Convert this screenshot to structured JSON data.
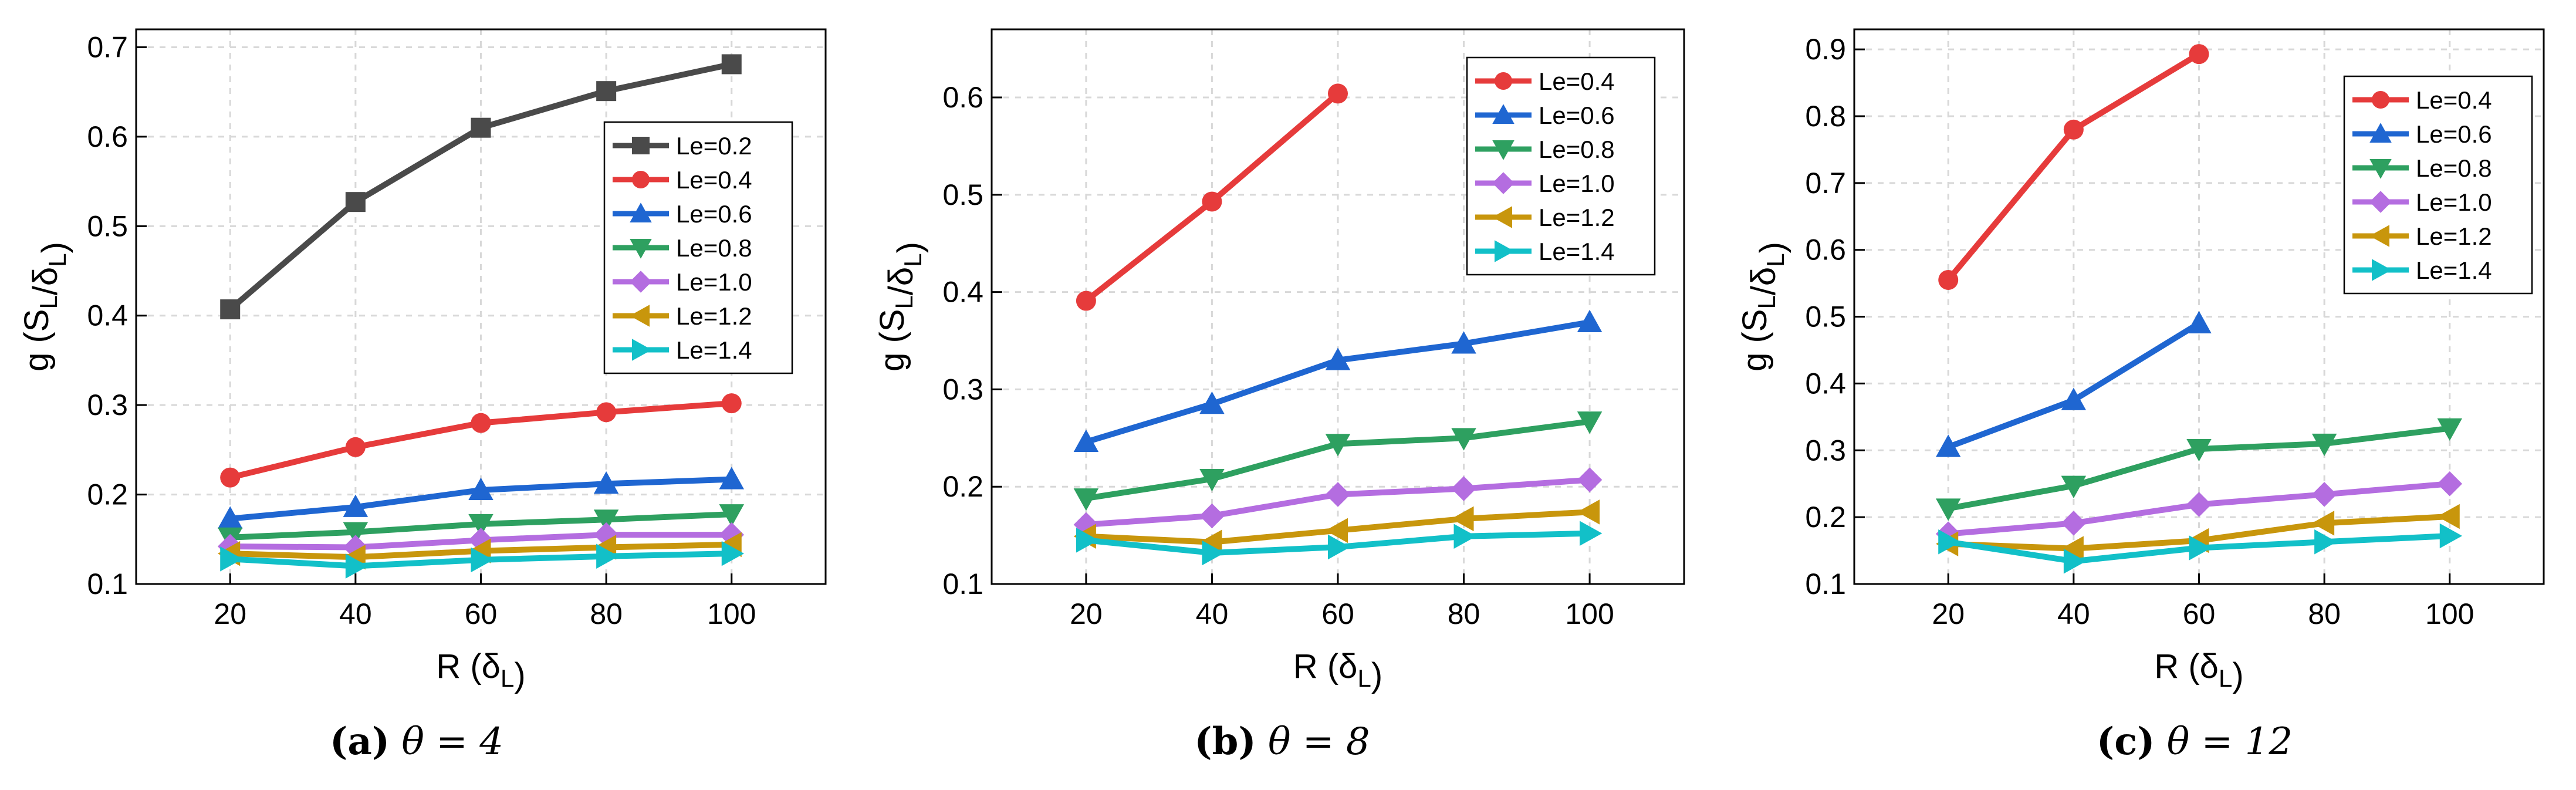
{
  "colors": {
    "Le=0.2": "#4a4a4a",
    "Le=0.4": "#e63b3b",
    "Le=0.6": "#1f66d1",
    "Le=0.8": "#2ea060",
    "Le=1.0": "#b46de0",
    "Le=1.2": "#c8960c",
    "Le=1.4": "#12c0c8"
  },
  "markers": {
    "Le=0.2": "square",
    "Le=0.4": "circle",
    "Le=0.6": "triangle-up",
    "Le=0.8": "triangle-down",
    "Le=1.0": "diamond",
    "Le=1.2": "triangle-left",
    "Le=1.4": "triangle-right"
  },
  "chart_data": [
    {
      "type": "line",
      "caption_label": "(a)",
      "caption_text": "θ = 4",
      "xlabel": "R (δL)",
      "ylabel": "g (SL/δL)",
      "xlim": [
        5,
        115
      ],
      "ylim": [
        0.1,
        0.72
      ],
      "xticks": [
        "20",
        "40",
        "60",
        "80",
        "100"
      ],
      "yticks": [
        "0.1",
        "0.2",
        "0.3",
        "0.4",
        "0.5",
        "0.6",
        "0.7"
      ],
      "ytick_values": [
        0.1,
        0.2,
        0.3,
        0.4,
        0.5,
        0.6,
        0.7
      ],
      "grid": true,
      "legend_position": "right-middle",
      "series": [
        {
          "name": "Le=0.2",
          "x": [
            20,
            40,
            60,
            80,
            100
          ],
          "values": [
            0.407,
            0.527,
            0.61,
            0.651,
            0.681
          ]
        },
        {
          "name": "Le=0.4",
          "x": [
            20,
            40,
            60,
            80,
            100
          ],
          "values": [
            0.219,
            0.253,
            0.28,
            0.292,
            0.302
          ]
        },
        {
          "name": "Le=0.6",
          "x": [
            20,
            40,
            60,
            80,
            100
          ],
          "values": [
            0.173,
            0.186,
            0.205,
            0.212,
            0.217
          ]
        },
        {
          "name": "Le=0.8",
          "x": [
            20,
            40,
            60,
            80,
            100
          ],
          "values": [
            0.152,
            0.158,
            0.167,
            0.172,
            0.178
          ]
        },
        {
          "name": "Le=1.0",
          "x": [
            20,
            40,
            60,
            80,
            100
          ],
          "values": [
            0.142,
            0.141,
            0.149,
            0.155,
            0.155
          ]
        },
        {
          "name": "Le=1.2",
          "x": [
            20,
            40,
            60,
            80,
            100
          ],
          "values": [
            0.134,
            0.13,
            0.137,
            0.141,
            0.144
          ]
        },
        {
          "name": "Le=1.4",
          "x": [
            20,
            40,
            60,
            80,
            100
          ],
          "values": [
            0.128,
            0.12,
            0.127,
            0.131,
            0.134
          ]
        }
      ]
    },
    {
      "type": "line",
      "caption_label": "(b)",
      "caption_text": "θ = 8",
      "xlabel": "R (δL)",
      "ylabel": "g (SL/δL)",
      "xlim": [
        5,
        115
      ],
      "ylim": [
        0.1,
        0.67
      ],
      "xticks": [
        "20",
        "40",
        "60",
        "80",
        "100"
      ],
      "yticks": [
        "0.1",
        "0.2",
        "0.3",
        "0.4",
        "0.5",
        "0.6"
      ],
      "ytick_values": [
        0.1,
        0.2,
        0.3,
        0.4,
        0.5,
        0.6
      ],
      "grid": true,
      "legend_position": "top-right",
      "series": [
        {
          "name": "Le=0.4",
          "x": [
            20,
            40,
            60
          ],
          "values": [
            0.391,
            0.493,
            0.604
          ]
        },
        {
          "name": "Le=0.6",
          "x": [
            20,
            40,
            60,
            80,
            100
          ],
          "values": [
            0.246,
            0.285,
            0.33,
            0.347,
            0.369
          ]
        },
        {
          "name": "Le=0.8",
          "x": [
            20,
            40,
            60,
            80,
            100
          ],
          "values": [
            0.188,
            0.208,
            0.244,
            0.25,
            0.267
          ]
        },
        {
          "name": "Le=1.0",
          "x": [
            20,
            40,
            60,
            80,
            100
          ],
          "values": [
            0.161,
            0.17,
            0.192,
            0.198,
            0.207
          ]
        },
        {
          "name": "Le=1.2",
          "x": [
            20,
            40,
            60,
            80,
            100
          ],
          "values": [
            0.149,
            0.143,
            0.155,
            0.167,
            0.174
          ]
        },
        {
          "name": "Le=1.4",
          "x": [
            20,
            40,
            60,
            80,
            100
          ],
          "values": [
            0.145,
            0.132,
            0.138,
            0.149,
            0.152
          ]
        }
      ]
    },
    {
      "type": "line",
      "caption_label": "(c)",
      "caption_text": "θ = 12",
      "xlabel": "R (δL)",
      "ylabel": "g (SL/δL)",
      "xlim": [
        5,
        115
      ],
      "ylim": [
        0.1,
        0.93
      ],
      "xticks": [
        "20",
        "40",
        "60",
        "80",
        "100"
      ],
      "yticks": [
        "0.1",
        "0.2",
        "0.3",
        "0.4",
        "0.5",
        "0.6",
        "0.7",
        "0.8",
        "0.9"
      ],
      "ytick_values": [
        0.1,
        0.2,
        0.3,
        0.4,
        0.5,
        0.6,
        0.7,
        0.8,
        0.9
      ],
      "grid": true,
      "legend_position": "top-right",
      "series": [
        {
          "name": "Le=0.4",
          "x": [
            20,
            40,
            60
          ],
          "values": [
            0.555,
            0.78,
            0.893
          ]
        },
        {
          "name": "Le=0.6",
          "x": [
            20,
            40,
            60
          ],
          "values": [
            0.305,
            0.375,
            0.49
          ]
        },
        {
          "name": "Le=0.8",
          "x": [
            20,
            40,
            60,
            80,
            100
          ],
          "values": [
            0.213,
            0.247,
            0.302,
            0.31,
            0.333
          ]
        },
        {
          "name": "Le=1.0",
          "x": [
            20,
            40,
            60,
            80,
            100
          ],
          "values": [
            0.175,
            0.191,
            0.219,
            0.234,
            0.25
          ]
        },
        {
          "name": "Le=1.2",
          "x": [
            20,
            40,
            60,
            80,
            100
          ],
          "values": [
            0.16,
            0.153,
            0.165,
            0.191,
            0.201
          ]
        },
        {
          "name": "Le=1.4",
          "x": [
            20,
            40,
            60,
            80,
            100
          ],
          "values": [
            0.163,
            0.134,
            0.154,
            0.163,
            0.172
          ]
        }
      ]
    }
  ]
}
